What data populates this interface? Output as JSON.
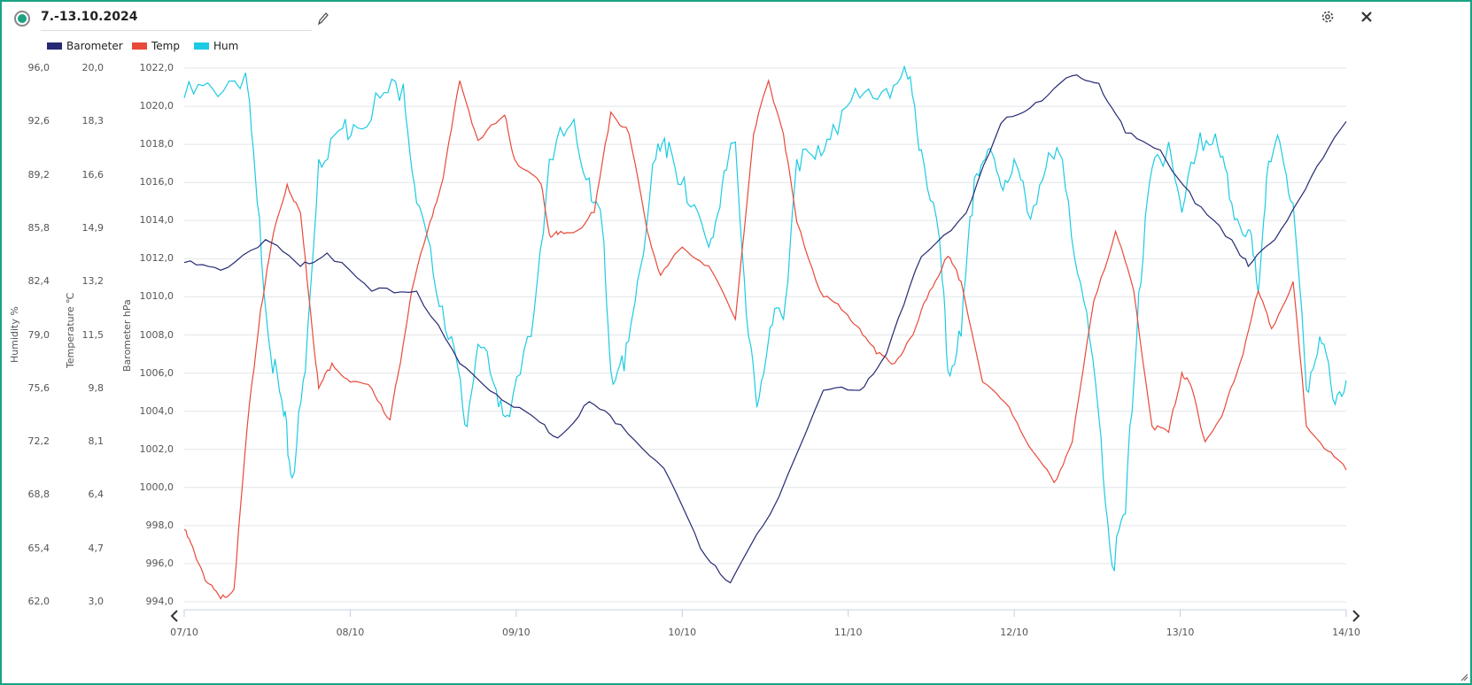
{
  "header": {
    "title": "7.-13.10.2024"
  },
  "icons": {
    "status": "radio-selected-icon",
    "edit": "pencil-icon",
    "settings": "gear-icon",
    "close": "close-icon"
  },
  "chart_data": {
    "type": "line",
    "title": "7.-13.10.2024",
    "legend_position": "top-left",
    "grid": true,
    "x_unit": "days since 07/10",
    "x_ticks": [
      "07/10",
      "08/10",
      "09/10",
      "10/10",
      "11/10",
      "12/10",
      "13/10",
      "14/10"
    ],
    "xlim": [
      0,
      7
    ],
    "axes": [
      {
        "id": "hum",
        "label": "Humidity %",
        "ylim": [
          62,
          96
        ],
        "ticks": [
          "96,0",
          "92,6",
          "89,2",
          "85,8",
          "82,4",
          "79,0",
          "75,6",
          "72,2",
          "68,8",
          "65,4",
          "62,0"
        ]
      },
      {
        "id": "temp",
        "label": "Temperature ℃",
        "ylim": [
          3,
          20
        ],
        "ticks": [
          "20,0",
          "18,3",
          "16,6",
          "14,9",
          "13,2",
          "11,5",
          "9,8",
          "8,1",
          "6,4",
          "4,7",
          "3,0"
        ]
      },
      {
        "id": "baro",
        "label": "Barometer hPa",
        "ylim": [
          994,
          1022
        ],
        "ticks": [
          "1022,0",
          "1020,0",
          "1018,0",
          "1016,0",
          "1014,0",
          "1012,0",
          "1010,0",
          "1008,0",
          "1006,0",
          "1004,0",
          "1002,0",
          "1000,0",
          "998,0",
          "996,0",
          "994,0"
        ]
      }
    ],
    "series": [
      {
        "name": "Barometer",
        "axis": "baro",
        "color": "#262a72",
        "points": [
          [
            0,
            1011.8
          ],
          [
            0.22,
            1011.4
          ],
          [
            0.49,
            1013.0
          ],
          [
            0.7,
            1011.6
          ],
          [
            0.86,
            1012.3
          ],
          [
            1.13,
            1010.3
          ],
          [
            1.4,
            1010.3
          ],
          [
            1.66,
            1006.5
          ],
          [
            1.88,
            1004.9
          ],
          [
            2.09,
            1003.8
          ],
          [
            2.25,
            1002.6
          ],
          [
            2.44,
            1004.5
          ],
          [
            2.63,
            1003.3
          ],
          [
            2.89,
            1001.0
          ],
          [
            3.11,
            996.8
          ],
          [
            3.29,
            995.0
          ],
          [
            3.53,
            998.6
          ],
          [
            3.85,
            1005.1
          ],
          [
            4.07,
            1005.1
          ],
          [
            4.23,
            1007.0
          ],
          [
            4.44,
            1012.1
          ],
          [
            4.71,
            1014.4
          ],
          [
            4.92,
            1019.1
          ],
          [
            5.13,
            1020.2
          ],
          [
            5.35,
            1021.6
          ],
          [
            5.51,
            1021.2
          ],
          [
            5.67,
            1018.6
          ],
          [
            5.88,
            1017.7
          ],
          [
            6.09,
            1014.9
          ],
          [
            6.31,
            1013.0
          ],
          [
            6.41,
            1011.6
          ],
          [
            6.57,
            1013.0
          ],
          [
            6.79,
            1016.3
          ],
          [
            7.0,
            1019.2
          ]
        ]
      },
      {
        "name": "Temp",
        "axis": "temp",
        "color": "#e84a3a",
        "points": [
          [
            0,
            5.3
          ],
          [
            0.06,
            4.6
          ],
          [
            0.14,
            3.6
          ],
          [
            0.22,
            3.1
          ],
          [
            0.3,
            3.4
          ],
          [
            0.38,
            8.6
          ],
          [
            0.46,
            12.3
          ],
          [
            0.54,
            14.8
          ],
          [
            0.62,
            16.3
          ],
          [
            0.7,
            15.4
          ],
          [
            0.76,
            12.3
          ],
          [
            0.81,
            9.8
          ],
          [
            0.89,
            10.6
          ],
          [
            1.0,
            10.0
          ],
          [
            1.13,
            9.8
          ],
          [
            1.24,
            8.8
          ],
          [
            1.29,
            10.3
          ],
          [
            1.37,
            12.9
          ],
          [
            1.48,
            15.1
          ],
          [
            1.56,
            16.5
          ],
          [
            1.66,
            19.6
          ],
          [
            1.77,
            17.7
          ],
          [
            1.93,
            18.5
          ],
          [
            1.99,
            17.1
          ],
          [
            2.15,
            16.3
          ],
          [
            2.2,
            14.7
          ],
          [
            2.25,
            14.7
          ],
          [
            2.36,
            14.8
          ],
          [
            2.47,
            15.4
          ],
          [
            2.57,
            18.6
          ],
          [
            2.68,
            17.9
          ],
          [
            2.79,
            14.8
          ],
          [
            2.87,
            13.4
          ],
          [
            3.0,
            14.3
          ],
          [
            3.16,
            13.7
          ],
          [
            3.32,
            12.0
          ],
          [
            3.43,
            17.9
          ],
          [
            3.52,
            19.6
          ],
          [
            3.61,
            17.9
          ],
          [
            3.69,
            15.1
          ],
          [
            3.83,
            12.9
          ],
          [
            3.96,
            12.3
          ],
          [
            4.07,
            11.7
          ],
          [
            4.17,
            10.9
          ],
          [
            4.28,
            10.6
          ],
          [
            4.39,
            11.5
          ],
          [
            4.49,
            12.9
          ],
          [
            4.6,
            14.0
          ],
          [
            4.68,
            13.2
          ],
          [
            4.81,
            10.0
          ],
          [
            4.97,
            9.2
          ],
          [
            5.11,
            7.8
          ],
          [
            5.24,
            6.8
          ],
          [
            5.35,
            8.1
          ],
          [
            5.48,
            12.6
          ],
          [
            5.61,
            14.8
          ],
          [
            5.72,
            12.9
          ],
          [
            5.83,
            8.6
          ],
          [
            5.93,
            8.4
          ],
          [
            6.01,
            10.3
          ],
          [
            6.07,
            9.8
          ],
          [
            6.15,
            8.1
          ],
          [
            6.25,
            8.9
          ],
          [
            6.36,
            10.6
          ],
          [
            6.47,
            12.9
          ],
          [
            6.55,
            11.7
          ],
          [
            6.68,
            13.2
          ],
          [
            6.76,
            8.6
          ],
          [
            6.89,
            7.8
          ],
          [
            7.0,
            7.2
          ]
        ]
      },
      {
        "name": "Hum",
        "axis": "hum",
        "color": "#1ccbe3",
        "points": [
          [
            0,
            94.1
          ],
          [
            0.17,
            94.7
          ],
          [
            0.37,
            95.7
          ],
          [
            0.44,
            87.4
          ],
          [
            0.52,
            77.8
          ],
          [
            0.6,
            73.8
          ],
          [
            0.65,
            69.9
          ],
          [
            0.73,
            76.7
          ],
          [
            0.81,
            90.2
          ],
          [
            0.92,
            91.9
          ],
          [
            1.02,
            92.4
          ],
          [
            1.18,
            94.1
          ],
          [
            1.32,
            95.0
          ],
          [
            1.4,
            87.4
          ],
          [
            1.5,
            82.9
          ],
          [
            1.61,
            78.9
          ],
          [
            1.69,
            73.3
          ],
          [
            1.77,
            78.4
          ],
          [
            1.88,
            75.5
          ],
          [
            1.96,
            73.8
          ],
          [
            2.09,
            78.9
          ],
          [
            2.2,
            90.2
          ],
          [
            2.33,
            92.4
          ],
          [
            2.44,
            89.0
          ],
          [
            2.52,
            85.7
          ],
          [
            2.57,
            76.7
          ],
          [
            2.65,
            76.7
          ],
          [
            2.73,
            82.4
          ],
          [
            2.84,
            90.2
          ],
          [
            2.92,
            91.3
          ],
          [
            3.03,
            87.4
          ],
          [
            3.16,
            84.6
          ],
          [
            3.24,
            88.5
          ],
          [
            3.32,
            91.3
          ],
          [
            3.4,
            78.9
          ],
          [
            3.45,
            74.4
          ],
          [
            3.53,
            79.5
          ],
          [
            3.61,
            80.0
          ],
          [
            3.69,
            90.2
          ],
          [
            3.8,
            90.2
          ],
          [
            3.91,
            92.4
          ],
          [
            4.07,
            94.1
          ],
          [
            4.23,
            94.7
          ],
          [
            4.36,
            95.3
          ],
          [
            4.44,
            90.8
          ],
          [
            4.55,
            85.1
          ],
          [
            4.6,
            76.7
          ],
          [
            4.68,
            78.9
          ],
          [
            4.76,
            89.0
          ],
          [
            4.84,
            90.8
          ],
          [
            4.92,
            88.5
          ],
          [
            5.0,
            90.2
          ],
          [
            5.08,
            86.8
          ],
          [
            5.19,
            89.6
          ],
          [
            5.29,
            90.2
          ],
          [
            5.4,
            82.3
          ],
          [
            5.51,
            73.8
          ],
          [
            5.59,
            64.3
          ],
          [
            5.67,
            67.6
          ],
          [
            5.75,
            81.7
          ],
          [
            5.83,
            89.6
          ],
          [
            5.93,
            91.3
          ],
          [
            6.01,
            86.8
          ],
          [
            6.12,
            91.9
          ],
          [
            6.23,
            90.8
          ],
          [
            6.31,
            87.4
          ],
          [
            6.41,
            85.7
          ],
          [
            6.47,
            81.7
          ],
          [
            6.52,
            89.0
          ],
          [
            6.6,
            91.3
          ],
          [
            6.68,
            87.4
          ],
          [
            6.76,
            75.5
          ],
          [
            6.84,
            78.9
          ],
          [
            6.92,
            74.9
          ],
          [
            7.0,
            76.1
          ]
        ]
      }
    ]
  }
}
